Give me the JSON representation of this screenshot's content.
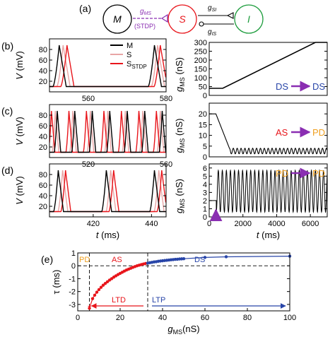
{
  "colors": {
    "M": "#000000",
    "S": "#e8a5a5",
    "S_STDP": "#e8151b",
    "DS": "#2845a8",
    "AS": "#e8151b",
    "PD": "#f0a020",
    "purple": "#8a2eb2",
    "green": "#1a9b3a",
    "blue": "#2845a8",
    "red": "#e8151b"
  },
  "panel_labels": [
    "(a)",
    "(b)",
    "(c)",
    "(d)",
    "(e)"
  ],
  "diagram": {
    "nodes": [
      "M",
      "S",
      "I"
    ],
    "g_ms": "g",
    "g_ms_sub": "MS",
    "stdp": "(STDP)",
    "g_si": "g",
    "g_si_sub": "SI",
    "g_is": "g",
    "g_is_sub": "IS"
  },
  "chart_data": [
    {
      "id": "b_left",
      "type": "line",
      "ylabel": "V (mV)",
      "xlabel": "",
      "xlim": [
        550,
        580
      ],
      "ylim": [
        0,
        100
      ],
      "xticks": [
        560,
        580
      ],
      "yticks": [
        20,
        40,
        60,
        80
      ],
      "legend": [
        "M",
        "S",
        "S_STDP"
      ],
      "series": [
        {
          "name": "M",
          "spikes": [
            552.5,
            577
          ]
        },
        {
          "name": "S",
          "spikes": [
            553.5,
            577.8
          ]
        },
        {
          "name": "S_STDP",
          "spikes": [
            554.5,
            578.5
          ]
        }
      ]
    },
    {
      "id": "b_right",
      "type": "line",
      "ylabel": "g_MS (nS)",
      "xlabel": "",
      "xlim": [
        0,
        7000
      ],
      "ylim": [
        0,
        300
      ],
      "yticks": [
        0,
        50,
        100,
        150,
        200,
        250,
        300
      ],
      "annotation": [
        "DS",
        "DS"
      ],
      "series": [
        {
          "name": "g_MS",
          "x": [
            0,
            800,
            6300,
            7000
          ],
          "y": [
            40,
            40,
            300,
            300
          ]
        }
      ]
    },
    {
      "id": "c_left",
      "type": "line",
      "ylabel": "V (mV)",
      "xlabel": "",
      "xlim": [
        500,
        560
      ],
      "ylim": [
        0,
        100
      ],
      "xticks": [
        520,
        560
      ],
      "yticks": [
        20,
        40,
        60,
        80
      ],
      "series": [
        {
          "name": "M",
          "spikes": [
            504,
            513,
            522,
            531,
            540,
            549,
            558
          ]
        },
        {
          "name": "S",
          "spikes": [
            503,
            512,
            521,
            530,
            539,
            548,
            557
          ]
        },
        {
          "name": "S_STDP",
          "spikes": [
            501,
            510,
            519,
            528,
            537,
            546,
            555
          ]
        }
      ]
    },
    {
      "id": "c_right",
      "type": "line",
      "ylabel": "g_MS (nS)",
      "xlabel": "",
      "xlim": [
        0,
        7000
      ],
      "ylim": [
        0,
        25
      ],
      "yticks": [
        0,
        5,
        10,
        15,
        20
      ],
      "annotation": [
        "AS",
        "PD"
      ],
      "series": [
        {
          "name": "g_MS",
          "x": [
            0,
            400,
            1200
          ],
          "y": [
            20,
            20,
            4
          ]
        }
      ]
    },
    {
      "id": "d_left",
      "type": "line",
      "ylabel": "V (mV)",
      "xlabel": "t (ms)",
      "xlim": [
        405,
        445
      ],
      "ylim": [
        0,
        100
      ],
      "xticks": [
        420,
        440
      ],
      "yticks": [
        20,
        40,
        60,
        80
      ],
      "series": [
        {
          "name": "M",
          "spikes": [
            408,
            424.5,
            441
          ]
        },
        {
          "name": "S",
          "spikes": [
            409.5,
            426,
            442.5
          ]
        },
        {
          "name": "S_STDP",
          "spikes": [
            410.5,
            427,
            443.5
          ]
        }
      ]
    },
    {
      "id": "d_right",
      "type": "line",
      "ylabel": "g_MS (nS)",
      "xlabel": "t (ms)",
      "xlim": [
        0,
        7000
      ],
      "ylim": [
        0,
        6.5
      ],
      "xticks": [
        0,
        2000,
        4000,
        6000
      ],
      "xtick_labels": [
        "0",
        "2000",
        "4000",
        "6000"
      ],
      "yticks": [
        0,
        1,
        2,
        3,
        4,
        5,
        6
      ],
      "annotation": [
        "PD",
        "PD"
      ],
      "series": [
        {
          "name": "g_MS",
          "start": 2,
          "min": 0.6,
          "max": 5.7,
          "period": 240
        }
      ]
    },
    {
      "id": "e",
      "type": "scatter",
      "ylabel": "τ (ms)",
      "xlabel": "g_MS (nS)",
      "xlim": [
        0,
        100
      ],
      "ylim": [
        -3.5,
        1
      ],
      "xticks": [
        0,
        20,
        40,
        60,
        80,
        100
      ],
      "yticks": [
        -3,
        -2,
        -1,
        0,
        1
      ],
      "vlines": [
        5.5,
        33
      ],
      "regions": [
        "PD",
        "AS",
        "DS"
      ],
      "arrows": [
        "LTD",
        "LTP"
      ],
      "series": [
        {
          "name": "AS",
          "x": [
            5.5,
            7,
            8,
            9,
            10,
            11,
            12,
            13,
            14,
            15,
            16,
            17,
            18,
            19,
            20,
            21,
            22,
            23,
            24,
            25,
            26,
            27,
            28,
            29,
            30,
            31,
            32
          ],
          "y": [
            -3.3,
            -2.55,
            -2.28,
            -2.05,
            -1.85,
            -1.67,
            -1.51,
            -1.37,
            -1.24,
            -1.11,
            -1.0,
            -0.88,
            -0.78,
            -0.68,
            -0.59,
            -0.5,
            -0.41,
            -0.33,
            -0.26,
            -0.19,
            -0.12,
            -0.06,
            0.0,
            0.05,
            0.1,
            0.14,
            0.18
          ]
        },
        {
          "name": "DS",
          "x": [
            33,
            34,
            35,
            36,
            37,
            38,
            39,
            40,
            41,
            42,
            43,
            44,
            45,
            46,
            47,
            48,
            49,
            50,
            60,
            70,
            100
          ],
          "y": [
            0.21,
            0.24,
            0.27,
            0.3,
            0.32,
            0.35,
            0.37,
            0.39,
            0.41,
            0.43,
            0.45,
            0.47,
            0.48,
            0.5,
            0.51,
            0.53,
            0.54,
            0.55,
            0.65,
            0.7,
            0.75
          ]
        }
      ]
    }
  ]
}
